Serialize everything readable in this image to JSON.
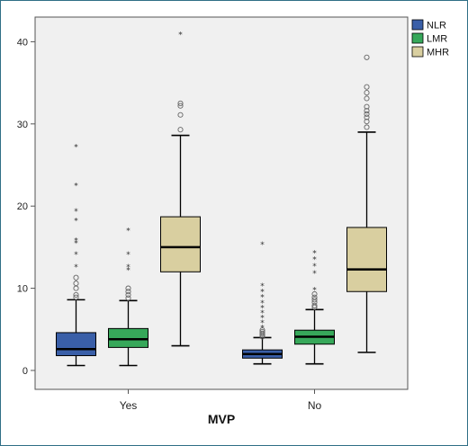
{
  "chart_data": {
    "type": "boxplot",
    "xlabel": "MVP",
    "ylabel": "",
    "ylim": [
      -2.3,
      43
    ],
    "yticks": [
      0,
      10,
      20,
      30,
      40
    ],
    "grid": false,
    "legend_position": "top-right",
    "categories": [
      "Yes",
      "No"
    ],
    "series": [
      {
        "name": "NLR",
        "color": "#3a5fa8",
        "boxes": [
          {
            "category": "Yes",
            "whisker_low": 0.6,
            "q1": 1.8,
            "median": 2.6,
            "q3": 4.6,
            "whisker_high": 8.6,
            "outliers_circle": [
              8.9,
              9.2,
              10.0,
              10.6,
              11.3
            ],
            "outliers_star": [
              12.7,
              14.2,
              15.6,
              15.9,
              18.3,
              19.5,
              22.6,
              27.3
            ]
          },
          {
            "category": "No",
            "whisker_low": 0.8,
            "q1": 1.5,
            "median": 2.0,
            "q3": 2.5,
            "whisker_high": 4.0,
            "outliers_circle": [
              4.1,
              4.3,
              4.5,
              4.7,
              4.9
            ],
            "outliers_star": [
              5.3,
              5.9,
              6.5,
              7.1,
              7.7,
              8.3,
              9.0,
              9.7,
              10.4,
              15.4
            ]
          }
        ]
      },
      {
        "name": "LMR",
        "color": "#37a85a",
        "boxes": [
          {
            "category": "Yes",
            "whisker_low": 0.6,
            "q1": 2.8,
            "median": 3.8,
            "q3": 5.1,
            "whisker_high": 8.5,
            "outliers_circle": [
              8.8,
              9.2,
              9.6,
              10.0
            ],
            "outliers_star": [
              12.3,
              12.7,
              14.2,
              17.1
            ]
          },
          {
            "category": "No",
            "whisker_low": 0.8,
            "q1": 3.2,
            "median": 4.1,
            "q3": 4.9,
            "whisker_high": 7.4,
            "outliers_circle": [
              7.7,
              7.9,
              8.3,
              8.6,
              8.9,
              9.3
            ],
            "outliers_star": [
              9.9,
              11.9,
              12.8,
              13.6,
              14.4
            ]
          }
        ]
      },
      {
        "name": "MHR",
        "color": "#d9cfa0",
        "boxes": [
          {
            "category": "Yes",
            "whisker_low": 3.0,
            "q1": 12.0,
            "median": 15.0,
            "q3": 18.7,
            "whisker_high": 28.6,
            "outliers_circle": [
              29.3,
              31.1,
              32.2,
              32.5
            ],
            "outliers_star": [
              41.0
            ]
          },
          {
            "category": "No",
            "whisker_low": 2.2,
            "q1": 9.6,
            "median": 12.3,
            "q3": 17.4,
            "whisker_high": 29.0,
            "outliers_circle": [
              29.6,
              30.3,
              30.8,
              31.2,
              31.6,
              32.1,
              33.1,
              33.8,
              34.5,
              38.1
            ],
            "outliers_star": []
          }
        ]
      }
    ]
  }
}
